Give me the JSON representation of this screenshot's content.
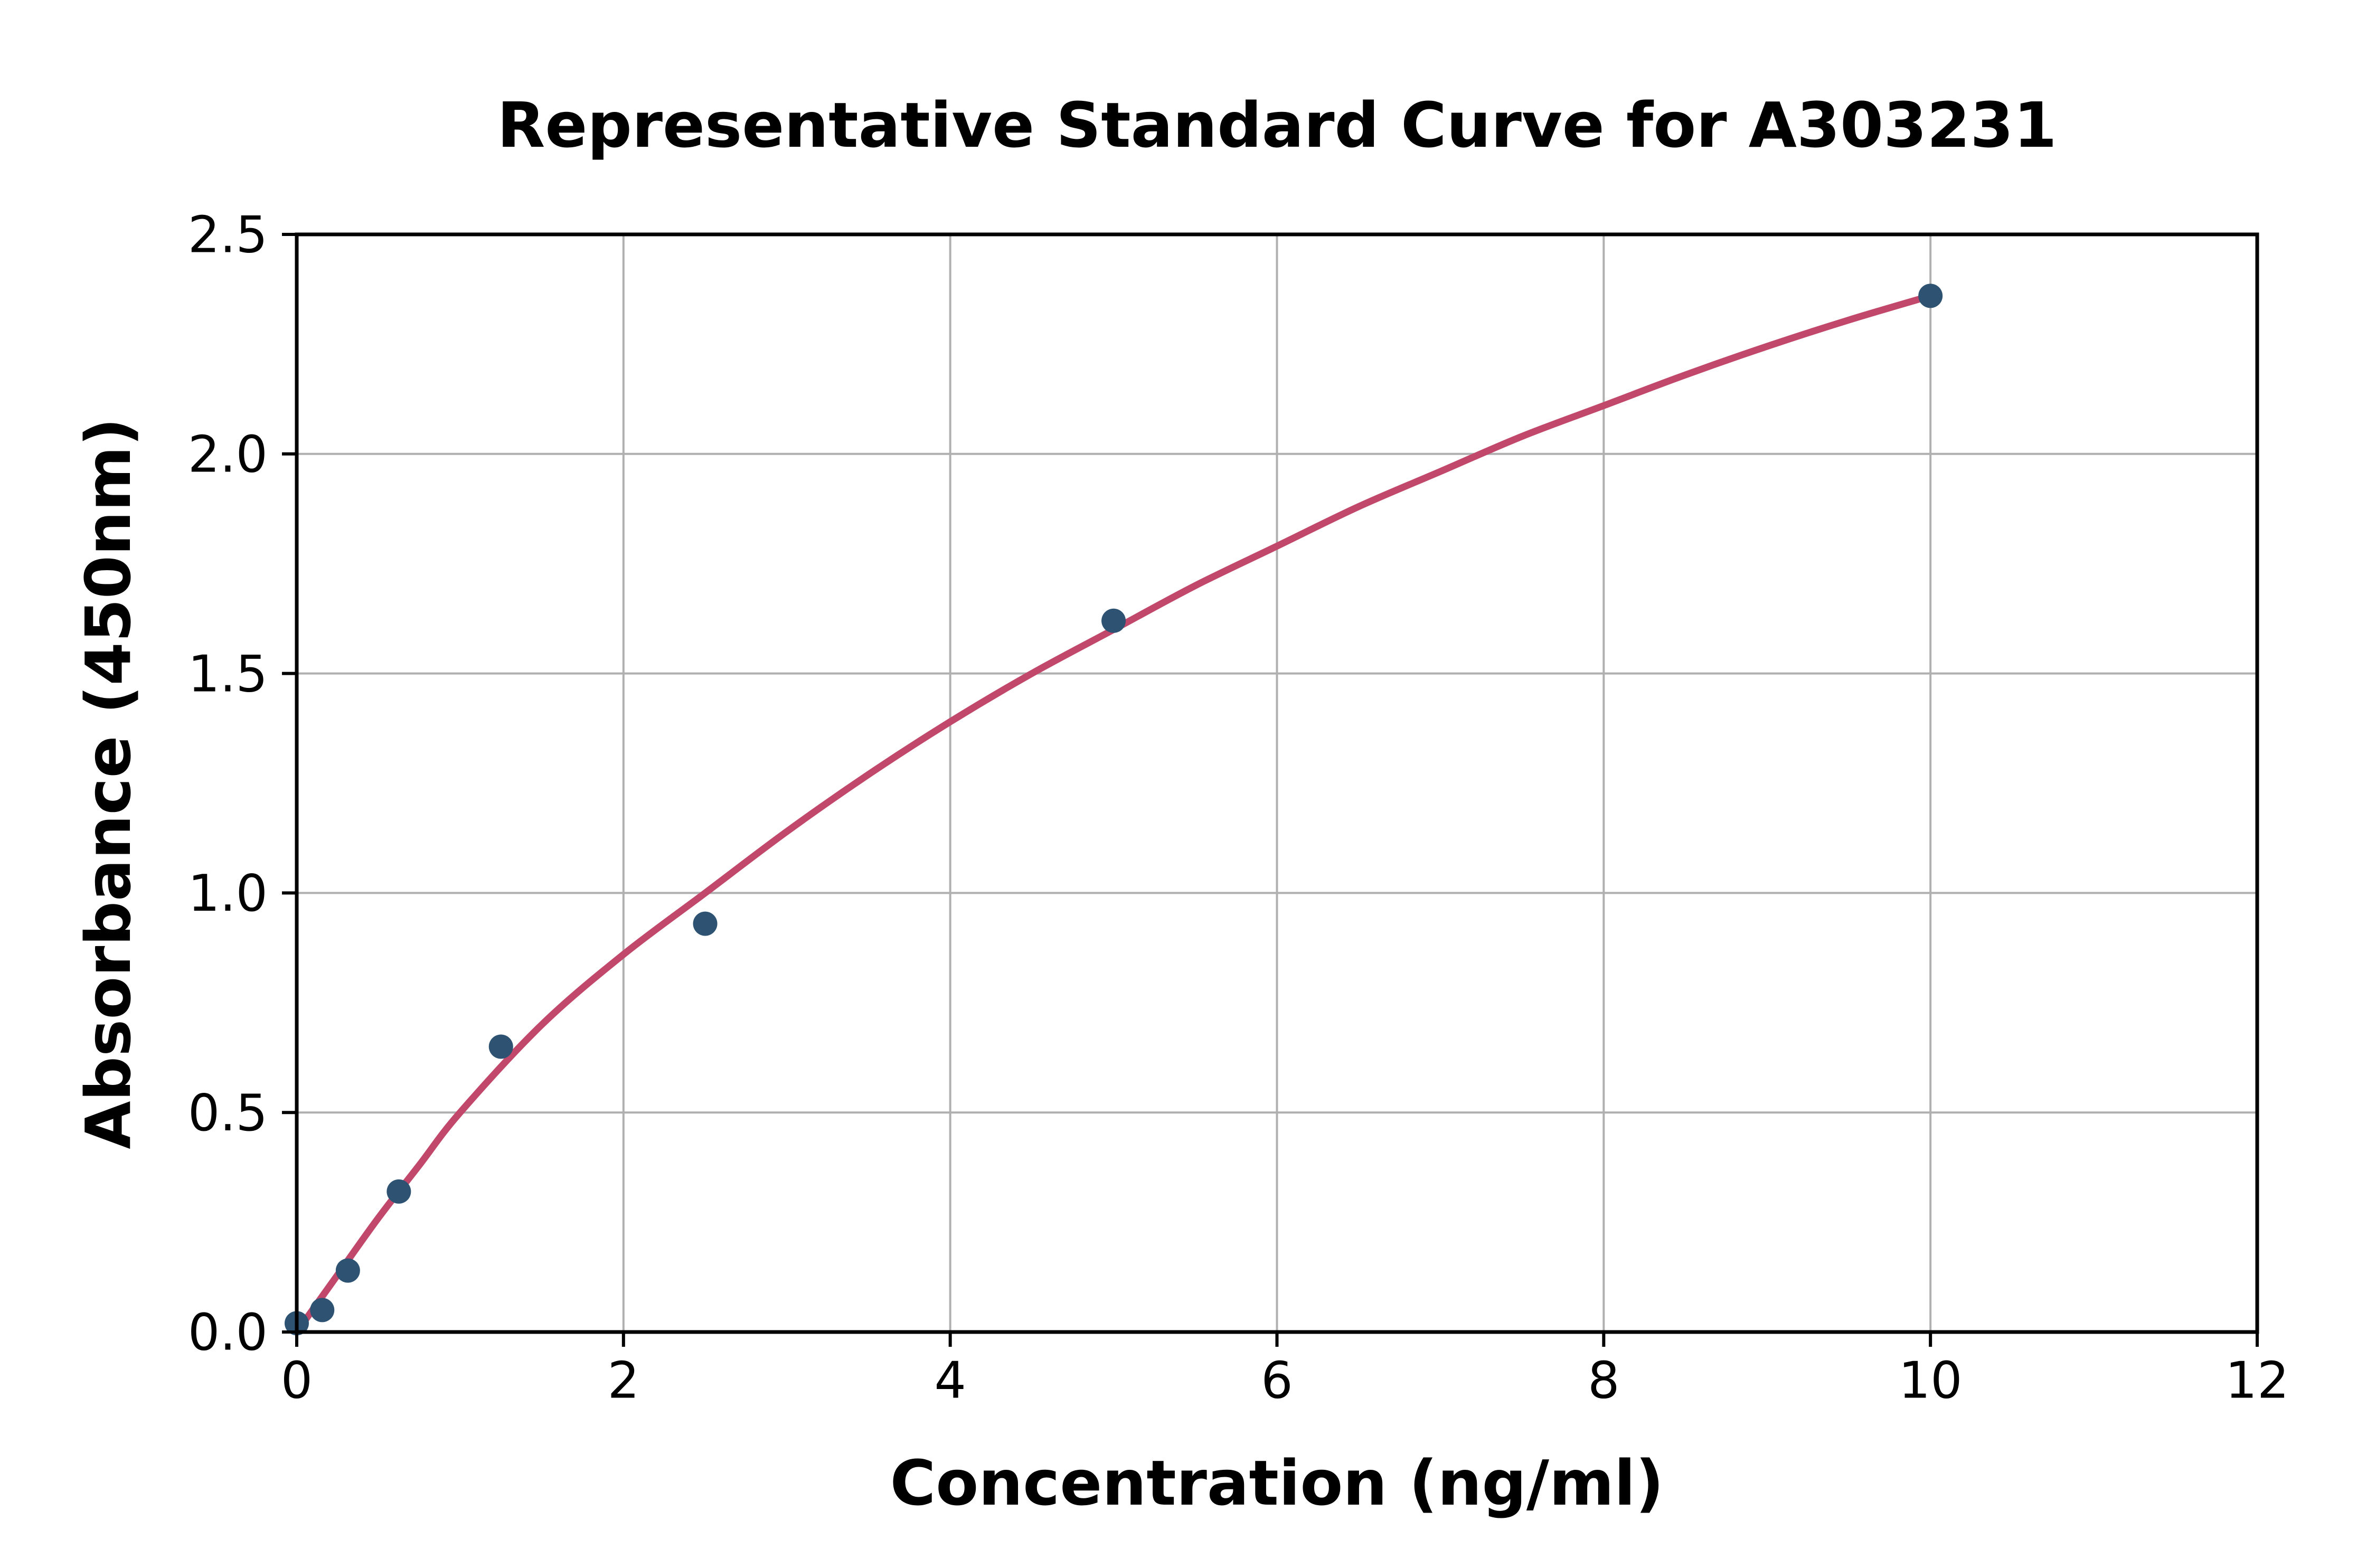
{
  "page": {
    "background": "#ffffff"
  },
  "chart_data": {
    "type": "scatter",
    "title": "Representative Standard Curve for A303231",
    "xlabel": "Concentration (ng/ml)",
    "ylabel": "Absorbance (450nm)",
    "xlim": [
      0,
      12
    ],
    "ylim": [
      0,
      2.5
    ],
    "x_tick_values": [
      0,
      2,
      4,
      6,
      8,
      10,
      12
    ],
    "x_tick_labels": [
      "0",
      "2",
      "4",
      "6",
      "8",
      "10",
      "12"
    ],
    "y_tick_values": [
      0,
      0.5,
      1.0,
      1.5,
      2.0,
      2.5
    ],
    "y_tick_labels": [
      "0.0",
      "0.5",
      "1.0",
      "1.5",
      "2.0",
      "2.5"
    ],
    "grid": true,
    "legend_position": "none",
    "series": [
      {
        "name": "standard data points",
        "type": "scatter",
        "points": [
          [
            0,
            0.02
          ],
          [
            0.156,
            0.05
          ],
          [
            0.313,
            0.14
          ],
          [
            0.625,
            0.32
          ],
          [
            1.25,
            0.65
          ],
          [
            2.5,
            0.93
          ],
          [
            5,
            1.62
          ],
          [
            10,
            2.36
          ]
        ]
      },
      {
        "name": "fitted standard curve",
        "type": "line",
        "samples": [
          [
            0,
            0
          ],
          [
            0.25,
            0.13
          ],
          [
            0.5,
            0.26
          ],
          [
            0.75,
            0.38
          ],
          [
            1.0,
            0.5
          ],
          [
            1.5,
            0.7
          ],
          [
            2.0,
            0.86
          ],
          [
            2.5,
            1.0
          ],
          [
            3.0,
            1.14
          ],
          [
            3.5,
            1.27
          ],
          [
            4.0,
            1.39
          ],
          [
            4.5,
            1.5
          ],
          [
            5.0,
            1.6
          ],
          [
            5.5,
            1.7
          ],
          [
            6.0,
            1.79
          ],
          [
            6.5,
            1.88
          ],
          [
            7.0,
            1.96
          ],
          [
            7.5,
            2.04
          ],
          [
            8.0,
            2.11
          ],
          [
            8.5,
            2.18
          ],
          [
            9.0,
            2.245
          ],
          [
            9.5,
            2.305
          ],
          [
            10,
            2.36
          ]
        ]
      }
    ],
    "colors": {
      "point": "#2e5372",
      "curve": "#c2486b",
      "grid": "#b0b0b0",
      "axis": "#000000",
      "text": "#000000",
      "background": "#ffffff"
    }
  }
}
